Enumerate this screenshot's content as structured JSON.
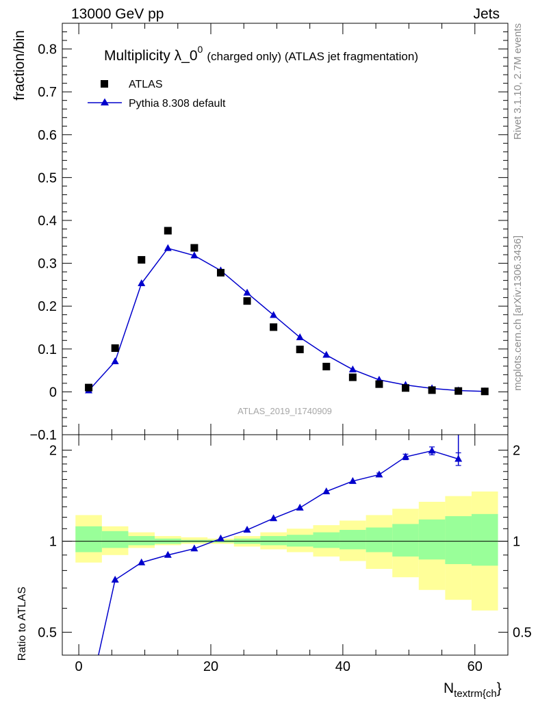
{
  "header": {
    "left": "13000 GeV pp",
    "right": "Jets"
  },
  "side_text": {
    "top": "Rivet 3.1.10,  2.7M events",
    "bottom": "mcplots.cern.ch [arXiv:1306.3436]"
  },
  "watermark": "ATLAS_2019_I1740909",
  "colors": {
    "mc": "#0000cc",
    "band_inner": "#99ff99",
    "band_outer": "#ffff99",
    "data": "#000000"
  },
  "chart_data": [
    {
      "type": "scatter",
      "panel": "main",
      "title": "Multiplicity λ_0^0 (charged only) (ATLAS jet fragmentation)",
      "title_main": "Multiplicity λ_0",
      "title_sup": "0",
      "title_rest": "(charged only) (ATLAS jet fragmentation)",
      "ylabel": "fraction/bin",
      "xlim": [
        -2.5,
        65
      ],
      "ylim": [
        -0.1,
        0.86
      ],
      "y_ticks": [
        -0.1,
        0,
        0.1,
        0.2,
        0.3,
        0.4,
        0.5,
        0.6,
        0.7,
        0.8
      ],
      "y_tick_labels": [
        "−0.1",
        "0",
        "0.1",
        "0.2",
        "0.3",
        "0.4",
        "0.5",
        "0.6",
        "0.7",
        "0.8"
      ],
      "legend_position": "top-left",
      "series": [
        {
          "name": "ATLAS",
          "marker": "square",
          "x": [
            1.5,
            5.5,
            9.5,
            13.5,
            17.5,
            21.5,
            25.5,
            29.5,
            33.5,
            37.5,
            41.5,
            45.5,
            49.5,
            53.5,
            57.5,
            61.5
          ],
          "y": [
            0.01,
            0.102,
            0.308,
            0.376,
            0.336,
            0.278,
            0.212,
            0.151,
            0.099,
            0.059,
            0.034,
            0.018,
            0.009,
            0.004,
            0.002,
            0.001
          ]
        },
        {
          "name": "Pythia 8.308 default",
          "marker": "triangle",
          "x": [
            1.5,
            5.5,
            9.5,
            13.5,
            17.5,
            21.5,
            25.5,
            29.5,
            33.5,
            37.5,
            41.5,
            45.5,
            49.5,
            53.5,
            57.5,
            61.5
          ],
          "y": [
            0.003,
            0.071,
            0.253,
            0.335,
            0.318,
            0.283,
            0.231,
            0.179,
            0.127,
            0.086,
            0.052,
            0.028,
            0.016,
            0.008,
            0.003,
            0.001
          ]
        }
      ]
    },
    {
      "type": "line",
      "panel": "ratio",
      "ylabel": "Ratio to ATLAS",
      "xlabel": "N_textrm{ch}",
      "xlabel_main": "N",
      "xlabel_sub": "textrm{ch",
      "xlabel_close": "}",
      "xlim": [
        -2.5,
        65
      ],
      "ylim": [
        0.42,
        2.25
      ],
      "y_scale": "log",
      "y_ticks": [
        0.5,
        1,
        2
      ],
      "y_tick_labels": [
        "0.5",
        "1",
        "2"
      ],
      "x_ticks": [
        0,
        20,
        40,
        60
      ],
      "x_tick_labels": [
        "0",
        "20",
        "40",
        "60"
      ],
      "bins": [
        [
          -0.5,
          3.5
        ],
        [
          3.5,
          7.5
        ],
        [
          7.5,
          11.5
        ],
        [
          11.5,
          15.5
        ],
        [
          15.5,
          19.5
        ],
        [
          19.5,
          23.5
        ],
        [
          23.5,
          27.5
        ],
        [
          27.5,
          31.5
        ],
        [
          31.5,
          35.5
        ],
        [
          35.5,
          39.5
        ],
        [
          39.5,
          43.5
        ],
        [
          43.5,
          47.5
        ],
        [
          47.5,
          51.5
        ],
        [
          51.5,
          55.5
        ],
        [
          55.5,
          59.5
        ],
        [
          59.5,
          63.5
        ]
      ],
      "band_outer": [
        [
          0.85,
          1.22
        ],
        [
          0.9,
          1.12
        ],
        [
          0.95,
          1.07
        ],
        [
          0.97,
          1.04
        ],
        [
          0.98,
          1.03
        ],
        [
          0.98,
          1.02
        ],
        [
          0.96,
          1.04
        ],
        [
          0.94,
          1.07
        ],
        [
          0.92,
          1.1
        ],
        [
          0.89,
          1.13
        ],
        [
          0.86,
          1.17
        ],
        [
          0.81,
          1.22
        ],
        [
          0.76,
          1.28
        ],
        [
          0.69,
          1.35
        ],
        [
          0.64,
          1.41
        ],
        [
          0.59,
          1.46
        ]
      ],
      "band_inner": [
        [
          0.92,
          1.12
        ],
        [
          0.95,
          1.08
        ],
        [
          0.97,
          1.04
        ],
        [
          0.98,
          1.02
        ],
        [
          0.99,
          1.01
        ],
        [
          0.99,
          1.01
        ],
        [
          0.98,
          1.02
        ],
        [
          0.97,
          1.04
        ],
        [
          0.96,
          1.05
        ],
        [
          0.95,
          1.07
        ],
        [
          0.94,
          1.09
        ],
        [
          0.92,
          1.11
        ],
        [
          0.89,
          1.14
        ],
        [
          0.87,
          1.18
        ],
        [
          0.84,
          1.21
        ],
        [
          0.83,
          1.23
        ]
      ],
      "series": [
        {
          "name": "Pythia 8.308 default",
          "x": [
            1.5,
            5.5,
            9.5,
            13.5,
            17.5,
            21.5,
            25.5,
            29.5,
            33.5,
            37.5,
            41.5,
            45.5,
            49.5,
            53.5,
            57.5
          ],
          "y": [
            0.3,
            0.745,
            0.85,
            0.9,
            0.945,
            1.02,
            1.09,
            1.19,
            1.29,
            1.46,
            1.58,
            1.66,
            1.9,
            1.99,
            1.87
          ],
          "err": [
            0,
            0,
            0,
            0,
            0,
            0,
            0,
            0,
            0,
            0,
            0,
            0.02,
            0.04,
            0.06,
            0.09
          ]
        }
      ]
    }
  ]
}
